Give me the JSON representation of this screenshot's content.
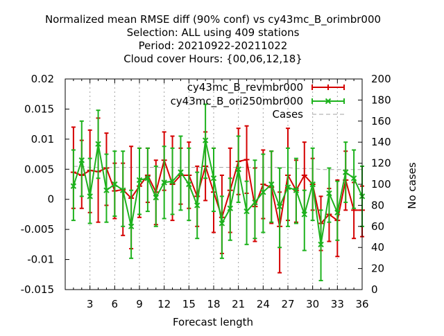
{
  "chart_data": {
    "type": "line",
    "title_lines": [
      "Normalized mean RMSE diff (90% conf) vs cy43mc_B_orimbr000",
      "Selection: ALL using   409 stations",
      "Period: 20210922-20211022",
      "Cloud cover   Hours: {00,06,12,18}"
    ],
    "xlabel": "Forecast length",
    "ylabel_left": "",
    "ylabel_right": "No cases",
    "xlim": [
      0,
      36
    ],
    "ylim_left": [
      -0.015,
      0.02
    ],
    "ylim_right": [
      0,
      200
    ],
    "x_ticks": [
      3,
      6,
      9,
      12,
      15,
      18,
      21,
      24,
      27,
      30,
      33,
      36
    ],
    "x_tick_labels": [
      "3",
      "6",
      "9",
      "12",
      "15",
      "18",
      "21",
      "24",
      "27",
      "30",
      "33",
      "36"
    ],
    "y_left_ticks": [
      -0.015,
      -0.01,
      -0.005,
      0,
      0.005,
      0.01,
      0.015,
      0.02
    ],
    "y_left_tick_labels": [
      "-0.015",
      "-0.01",
      "-0.005",
      "0",
      "0.005",
      "0.01",
      "0.015",
      "0.02"
    ],
    "y_right_ticks": [
      0,
      20,
      40,
      60,
      80,
      100,
      120,
      140,
      160,
      180,
      200
    ],
    "y_right_tick_labels": [
      "0",
      "20",
      "40",
      "60",
      "80",
      "100",
      "120",
      "140",
      "160",
      "180",
      "200"
    ],
    "legend_position": "top-right",
    "grid": "vertical dashed at x ticks",
    "x": [
      1,
      2,
      3,
      4,
      5,
      6,
      7,
      8,
      9,
      10,
      11,
      12,
      13,
      14,
      15,
      16,
      17,
      18,
      19,
      20,
      21,
      22,
      23,
      24,
      25,
      26,
      27,
      28,
      29,
      30,
      31,
      32,
      33,
      34,
      35,
      36
    ],
    "series": [
      {
        "name": "cy43mc_B_revmbr000",
        "color": "#d40000",
        "marker": "plus",
        "axis": "left",
        "values": [
          0.0045,
          0.004,
          0.0048,
          0.0046,
          0.0052,
          0.0014,
          0.0016,
          0.0002,
          0.0022,
          0.004,
          0.0012,
          0.0065,
          0.0025,
          0.004,
          0.004,
          0.0005,
          0.0055,
          0.0012,
          -0.003,
          0.0015,
          0.0063,
          0.0066,
          -0.0012,
          0.0025,
          0.002,
          -0.0045,
          0.004,
          0.0015,
          0.004,
          0.0025,
          -0.004,
          -0.0025,
          -0.0035,
          0.0032,
          -0.0018,
          -0.0018
        ],
        "upper": [
          0.012,
          0.0098,
          0.0115,
          0.0135,
          0.011,
          0.006,
          0.006,
          0.0088,
          0.0085,
          0.0085,
          0.0065,
          0.0112,
          0.0105,
          0.0085,
          0.0095,
          0.0055,
          0.0112,
          0.0085,
          0.004,
          0.0085,
          0.0118,
          0.0122,
          0.0052,
          0.0082,
          0.008,
          0.0012,
          0.0118,
          0.0065,
          0.0095,
          0.0068,
          0.0005,
          0.0018,
          0.0032,
          0.008,
          0.0028,
          0.0022
        ],
        "lower": [
          -0.0015,
          -0.0015,
          -0.0022,
          -0.0038,
          -0.001,
          -0.0032,
          -0.006,
          -0.0082,
          -0.003,
          -0.0005,
          -0.0042,
          0.0015,
          -0.0035,
          -0.0008,
          -0.0015,
          -0.0045,
          -0.0002,
          -0.0055,
          -0.009,
          -0.0055,
          0.0008,
          0.001,
          -0.007,
          -0.0032,
          -0.004,
          -0.0122,
          -0.0035,
          -0.0038,
          -0.0022,
          -0.0018,
          -0.0085,
          -0.007,
          -0.0095,
          -0.0018,
          -0.0065,
          -0.0062
        ]
      },
      {
        "name": "cy43mc_B_ori250mbr000",
        "color": "#1db21d",
        "marker": "x",
        "axis": "left",
        "values": [
          0.0022,
          0.0065,
          0.0005,
          0.0092,
          0.0015,
          0.0025,
          0.0015,
          -0.0045,
          0.0032,
          0.0035,
          0.0003,
          0.0028,
          0.003,
          0.0045,
          0.0025,
          -0.001,
          0.0098,
          0.0035,
          -0.004,
          -0.0015,
          0.005,
          -0.002,
          -0.0005,
          0.0012,
          0.0025,
          -0.0012,
          0.002,
          0.0015,
          -0.0025,
          0.0025,
          -0.0075,
          0.001,
          -0.0022,
          0.0045,
          0.0035,
          0.0005
        ],
        "upper": [
          0.0082,
          0.013,
          0.0068,
          0.0148,
          0.0075,
          0.008,
          0.008,
          0.0015,
          0.0085,
          0.0085,
          0.0055,
          0.0088,
          0.0085,
          0.0105,
          0.0085,
          0.0045,
          0.0158,
          0.0085,
          0.0005,
          0.0035,
          0.0105,
          0.003,
          0.0065,
          0.0075,
          0.008,
          0.0052,
          0.0085,
          0.0068,
          0.0015,
          0.0085,
          -0.0018,
          0.0052,
          0.003,
          0.0095,
          0.0082,
          0.0055
        ],
        "lower": [
          -0.0035,
          0.0005,
          -0.004,
          0.0035,
          -0.0038,
          -0.0028,
          -0.0045,
          -0.0098,
          -0.0025,
          -0.002,
          -0.0045,
          -0.0032,
          -0.0025,
          -0.0018,
          -0.0035,
          -0.0065,
          0.0035,
          -0.002,
          -0.0098,
          -0.0068,
          -0.0005,
          -0.0075,
          -0.0065,
          -0.0055,
          -0.0038,
          -0.008,
          -0.0045,
          -0.004,
          -0.0085,
          -0.0035,
          -0.0135,
          -0.0038,
          -0.0068,
          -0.0005,
          -0.0015,
          -0.0045
        ]
      },
      {
        "name": "Cases",
        "color": "#a0a0a0",
        "style": "dashed",
        "axis": "right",
        "values": [
          117,
          117,
          116,
          116,
          116,
          116,
          116,
          116,
          116,
          116,
          116,
          116,
          116,
          116,
          116,
          116,
          116,
          116,
          116,
          116,
          116,
          116,
          116,
          116,
          116,
          116,
          116,
          115,
          115,
          115,
          114,
          114,
          114,
          114,
          114,
          114
        ]
      }
    ]
  }
}
